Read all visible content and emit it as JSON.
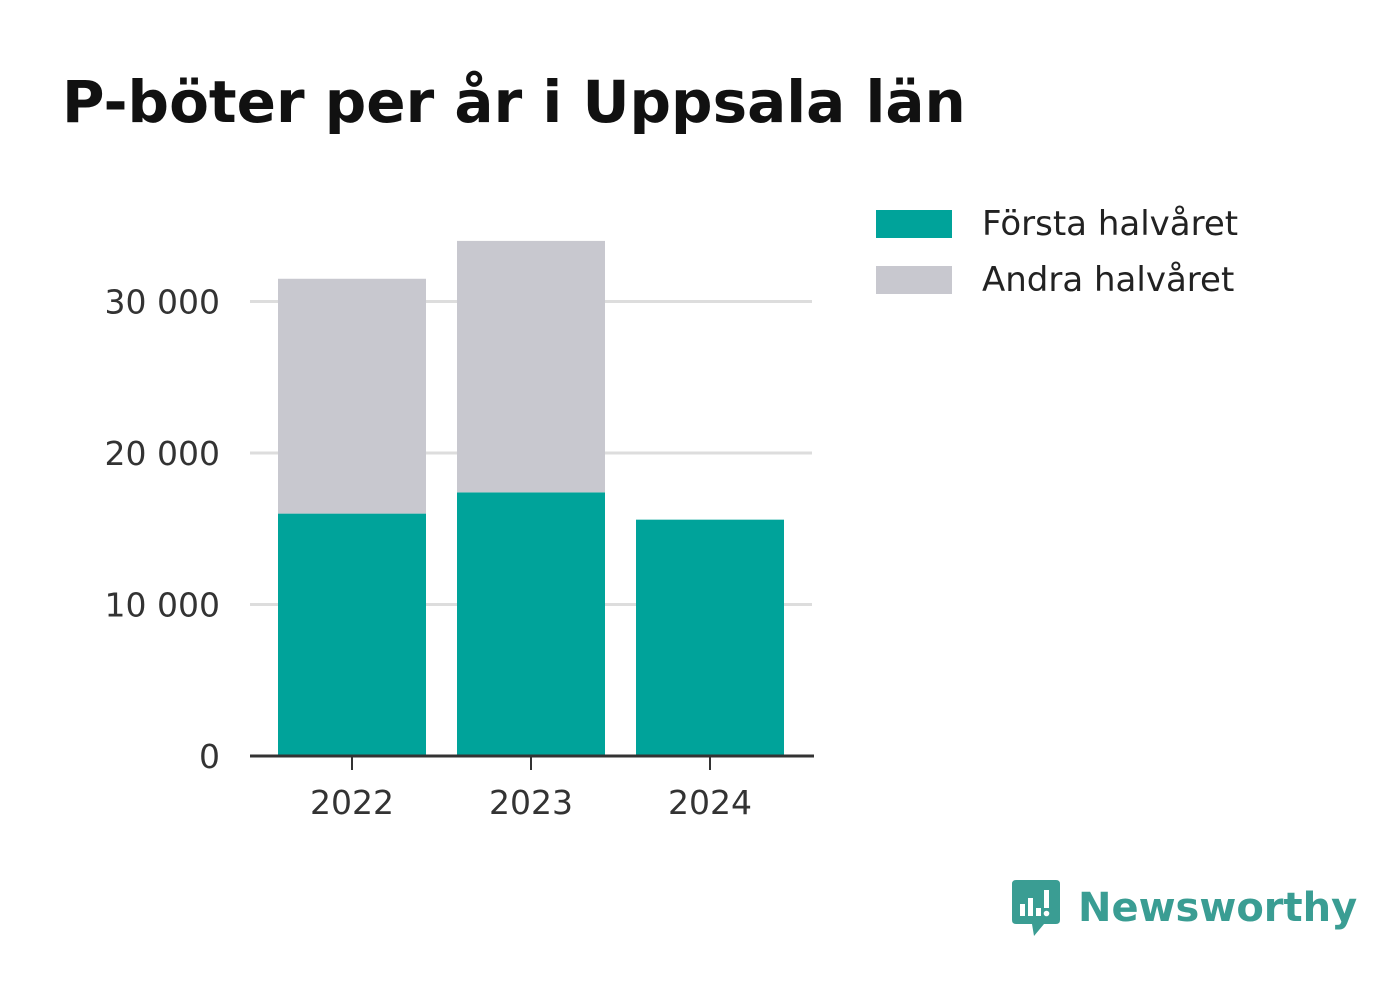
{
  "title": "P-böter per år i Uppsala län",
  "brand": {
    "name": "Newsworthy",
    "icon": "newsworthy-logo-icon",
    "color": "#3a9d93"
  },
  "chart_data": {
    "type": "bar",
    "stacked": true,
    "title": "P-böter per år i Uppsala län",
    "xlabel": "",
    "ylabel": "",
    "categories": [
      "2022",
      "2023",
      "2024"
    ],
    "series": [
      {
        "name": "Första halvåret",
        "color": "#00a39a",
        "values": [
          16000,
          17400,
          15600
        ]
      },
      {
        "name": "Andra halvåret",
        "color": "#c8c8cf",
        "values": [
          15500,
          16600,
          null
        ]
      }
    ],
    "y_ticks": [
      0,
      10000,
      20000,
      30000
    ],
    "y_tick_labels": [
      "0",
      "10 000",
      "20 000",
      "30 000"
    ],
    "ylim": [
      0,
      34000
    ],
    "grid": true,
    "legend_position": "top-right"
  }
}
